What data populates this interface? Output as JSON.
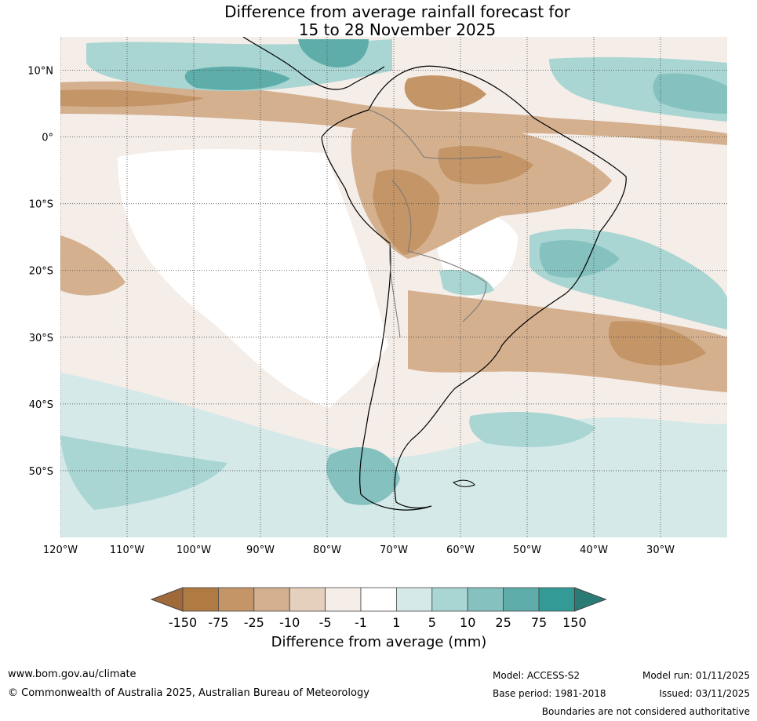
{
  "title": {
    "line1": "Difference from average rainfall forecast for",
    "line2": "15 to 28 November 2025"
  },
  "map": {
    "region": "South America",
    "lat_labels": [
      "10°N",
      "0°",
      "10°S",
      "20°S",
      "30°S",
      "40°S",
      "50°S"
    ],
    "lat_values": [
      10,
      0,
      -10,
      -20,
      -30,
      -40,
      -50
    ],
    "lon_labels": [
      "120°W",
      "110°W",
      "100°W",
      "90°W",
      "80°W",
      "70°W",
      "60°W",
      "50°W",
      "40°W",
      "30°W"
    ],
    "lon_values": [
      -120,
      -110,
      -100,
      -90,
      -80,
      -70,
      -60,
      -50,
      -40,
      -30
    ],
    "extent": {
      "lon_min": -120,
      "lon_max": -20,
      "lat_min": -60,
      "lat_max": 15
    }
  },
  "colorbar": {
    "title": "Difference from average (mm)",
    "tick_labels": [
      "-150",
      "-75",
      "-25",
      "-10",
      "-5",
      "-1",
      "1",
      "5",
      "10",
      "25",
      "75",
      "150"
    ],
    "colors": [
      "#a0693a",
      "#b07a43",
      "#c49566",
      "#d4b08f",
      "#e4d0bd",
      "#f4ede8",
      "#ffffff",
      "#d5e9e8",
      "#a9d5d3",
      "#84c1bf",
      "#5eadaa",
      "#349a96",
      "#2a7a76"
    ],
    "outline_color": "#444444"
  },
  "footer": {
    "website": "www.bom.gov.au/climate",
    "copyright": "© Commonwealth of Australia 2025, Australian Bureau of Meteorology",
    "model": "Model: ACCESS-S2",
    "base_period": "Base period: 1981-2018",
    "model_run": "Model run: 01/11/2025",
    "issued": "Issued: 03/11/2025",
    "disclaimer": "Boundaries are not considered authoritative"
  }
}
